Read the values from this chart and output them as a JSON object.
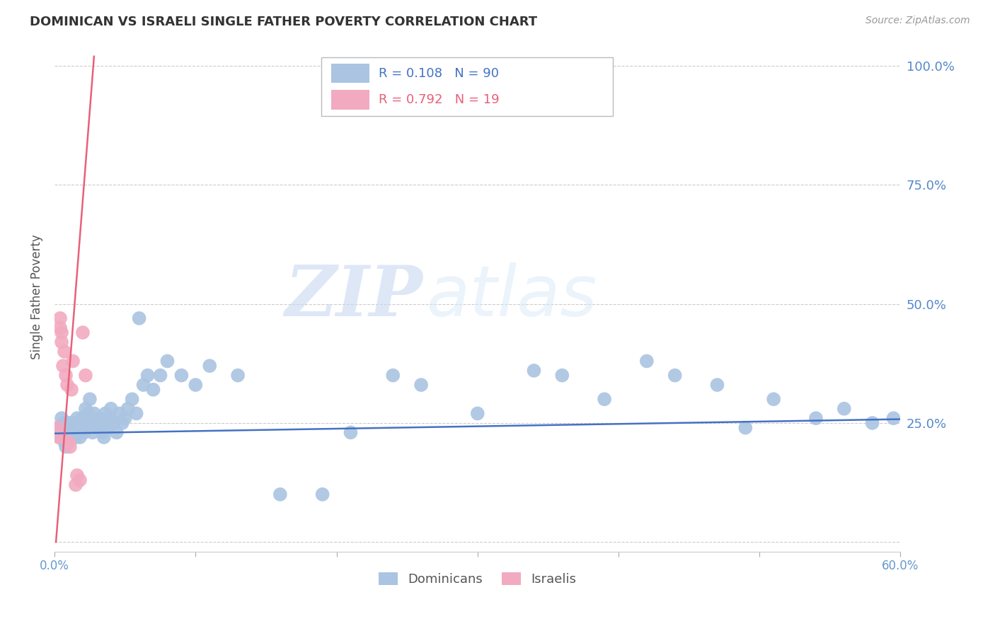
{
  "title": "DOMINICAN VS ISRAELI SINGLE FATHER POVERTY CORRELATION CHART",
  "source": "Source: ZipAtlas.com",
  "ylabel": "Single Father Poverty",
  "watermark_zip": "ZIP",
  "watermark_atlas": "atlas",
  "xlim": [
    0.0,
    0.6
  ],
  "ylim": [
    -0.02,
    1.05
  ],
  "yticks": [
    0.0,
    0.25,
    0.5,
    0.75,
    1.0
  ],
  "ytick_labels": [
    "",
    "25.0%",
    "50.0%",
    "75.0%",
    "100.0%"
  ],
  "xticks": [
    0.0,
    0.1,
    0.2,
    0.3,
    0.4,
    0.5,
    0.6
  ],
  "xtick_labels": [
    "0.0%",
    "",
    "",
    "",
    "",
    "",
    "60.0%"
  ],
  "dominican_color": "#aac4e2",
  "israeli_color": "#f2aac0",
  "trendline_dom_color": "#4472c4",
  "trendline_isr_color": "#e8607a",
  "legend_dom_label": "Dominicans",
  "legend_isr_label": "Israelis",
  "R_dom": 0.108,
  "N_dom": 90,
  "R_isr": 0.792,
  "N_isr": 19,
  "dom_trend_x": [
    0.0,
    0.6
  ],
  "dom_trend_y": [
    0.228,
    0.258
  ],
  "isr_trend_x": [
    0.001,
    0.028
  ],
  "isr_trend_y": [
    0.0,
    1.02
  ],
  "dom_x": [
    0.003,
    0.004,
    0.005,
    0.005,
    0.006,
    0.006,
    0.007,
    0.007,
    0.007,
    0.008,
    0.008,
    0.008,
    0.009,
    0.009,
    0.009,
    0.01,
    0.01,
    0.01,
    0.011,
    0.011,
    0.011,
    0.012,
    0.012,
    0.013,
    0.013,
    0.014,
    0.014,
    0.015,
    0.015,
    0.016,
    0.016,
    0.017,
    0.017,
    0.018,
    0.019,
    0.02,
    0.021,
    0.022,
    0.023,
    0.024,
    0.025,
    0.026,
    0.027,
    0.028,
    0.03,
    0.032,
    0.033,
    0.034,
    0.035,
    0.036,
    0.037,
    0.038,
    0.039,
    0.04,
    0.042,
    0.044,
    0.046,
    0.048,
    0.05,
    0.052,
    0.055,
    0.058,
    0.06,
    0.063,
    0.066,
    0.07,
    0.075,
    0.08,
    0.09,
    0.1,
    0.11,
    0.13,
    0.16,
    0.19,
    0.21,
    0.24,
    0.26,
    0.3,
    0.34,
    0.36,
    0.39,
    0.42,
    0.44,
    0.47,
    0.49,
    0.51,
    0.54,
    0.56,
    0.58,
    0.595
  ],
  "dom_y": [
    0.24,
    0.22,
    0.26,
    0.23,
    0.24,
    0.22,
    0.25,
    0.23,
    0.21,
    0.24,
    0.22,
    0.2,
    0.23,
    0.25,
    0.22,
    0.24,
    0.22,
    0.21,
    0.23,
    0.25,
    0.22,
    0.24,
    0.23,
    0.22,
    0.25,
    0.23,
    0.22,
    0.24,
    0.22,
    0.26,
    0.24,
    0.23,
    0.25,
    0.22,
    0.24,
    0.26,
    0.23,
    0.28,
    0.25,
    0.27,
    0.3,
    0.25,
    0.23,
    0.27,
    0.24,
    0.26,
    0.25,
    0.23,
    0.22,
    0.27,
    0.25,
    0.24,
    0.26,
    0.28,
    0.25,
    0.23,
    0.27,
    0.25,
    0.26,
    0.28,
    0.3,
    0.27,
    0.47,
    0.33,
    0.35,
    0.32,
    0.35,
    0.38,
    0.35,
    0.33,
    0.37,
    0.35,
    0.1,
    0.1,
    0.23,
    0.35,
    0.33,
    0.27,
    0.36,
    0.35,
    0.3,
    0.38,
    0.35,
    0.33,
    0.24,
    0.3,
    0.26,
    0.28,
    0.25,
    0.26
  ],
  "isr_x": [
    0.002,
    0.003,
    0.004,
    0.004,
    0.005,
    0.005,
    0.006,
    0.007,
    0.008,
    0.009,
    0.01,
    0.011,
    0.012,
    0.013,
    0.015,
    0.016,
    0.018,
    0.02,
    0.022
  ],
  "isr_y": [
    0.24,
    0.22,
    0.45,
    0.47,
    0.42,
    0.44,
    0.37,
    0.4,
    0.35,
    0.33,
    0.21,
    0.2,
    0.32,
    0.38,
    0.12,
    0.14,
    0.13,
    0.44,
    0.35
  ]
}
